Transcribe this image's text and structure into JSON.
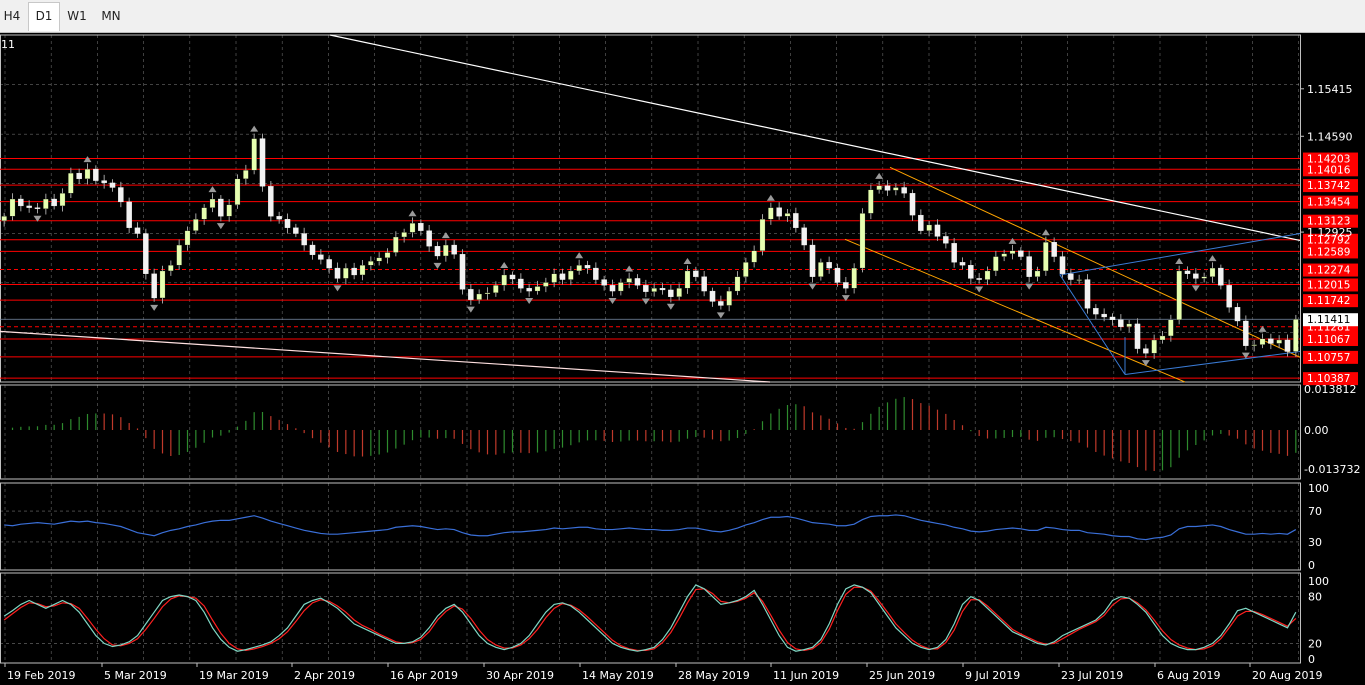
{
  "timeframe_tabs": [
    {
      "label": "H4",
      "active": false
    },
    {
      "label": "D1",
      "active": true
    },
    {
      "label": "W1",
      "active": false
    },
    {
      "label": "MN",
      "active": false
    }
  ],
  "chart_header": "11",
  "colors": {
    "background": "#000000",
    "grid": "#c0c0c0",
    "bull_candle": "#e6ffb0",
    "bear_candle": "#f2f2f2",
    "level_line": "#ff0000",
    "level_label_bg": "#ff0000",
    "trendline": "#ffffff",
    "channel": "#ffa500",
    "channel_blue": "#3a7bd5",
    "macd_up": "#2e8b2e",
    "macd_down": "#c0392b",
    "rsi": "#3a6fd8",
    "stoch_main": "#7fd7c4",
    "stoch_signal": "#ff2020"
  },
  "chart_data": {
    "type": "candlestick",
    "symbol_period": "D1",
    "price_range": [
      1.1032,
      1.1635
    ],
    "price_ticks": [
      "1.15415",
      "1.14590",
      "1.12925"
    ],
    "current_price": "1.11411",
    "levels": [
      "1.14203",
      "1.14016",
      "1.13742",
      "1.13454",
      "1.13123",
      "1.12792",
      "1.12589",
      "1.12274",
      "1.12015",
      "1.11742",
      "1.11281",
      "1.11067",
      "1.10757",
      "1.10387"
    ],
    "dashed_levels": [
      "1.12274",
      "1.11281"
    ],
    "x_labels": [
      "19 Feb 2019",
      "5 Mar 2019",
      "19 Mar 2019",
      "2 Apr 2019",
      "16 Apr 2019",
      "30 Apr 2019",
      "14 May 2019",
      "28 May 2019",
      "11 Jun 2019",
      "25 Jun 2019",
      "9 Jul 2019",
      "23 Jul 2019",
      "6 Aug 2019",
      "20 Aug 2019"
    ],
    "closes": [
      1.132,
      1.135,
      1.1338,
      1.1335,
      1.1333,
      1.135,
      1.1338,
      1.136,
      1.1395,
      1.1385,
      1.1402,
      1.1382,
      1.1378,
      1.137,
      1.1345,
      1.13,
      1.129,
      1.122,
      1.1178,
      1.1225,
      1.1235,
      1.127,
      1.1295,
      1.1315,
      1.1335,
      1.135,
      1.132,
      1.134,
      1.1385,
      1.14,
      1.1455,
      1.1372,
      1.132,
      1.1315,
      1.13,
      1.129,
      1.127,
      1.1253,
      1.1245,
      1.123,
      1.1212,
      1.123,
      1.1218,
      1.1235,
      1.1242,
      1.1248,
      1.1257,
      1.1284,
      1.1292,
      1.1308,
      1.1295,
      1.1268,
      1.1251,
      1.127,
      1.1254,
      1.1193,
      1.1175,
      1.1185,
      1.1187,
      1.12,
      1.1218,
      1.1211,
      1.1195,
      1.119,
      1.1198,
      1.1205,
      1.122,
      1.121,
      1.1225,
      1.1235,
      1.123,
      1.121,
      1.12,
      1.119,
      1.1205,
      1.1212,
      1.12,
      1.1189,
      1.1195,
      1.1192,
      1.118,
      1.1195,
      1.1225,
      1.1215,
      1.119,
      1.1172,
      1.1165,
      1.119,
      1.1215,
      1.124,
      1.126,
      1.1315,
      1.1335,
      1.132,
      1.1325,
      1.13,
      1.127,
      1.1215,
      1.124,
      1.123,
      1.1205,
      1.1195,
      1.123,
      1.1325,
      1.1366,
      1.1373,
      1.1365,
      1.137,
      1.136,
      1.1322,
      1.1295,
      1.1305,
      1.1285,
      1.1273,
      1.124,
      1.1235,
      1.1212,
      1.121,
      1.1225,
      1.125,
      1.1255,
      1.126,
      1.125,
      1.1215,
      1.1225,
      1.1275,
      1.125,
      1.122,
      1.121,
      1.121,
      1.116,
      1.115,
      1.1145,
      1.114,
      1.1128,
      1.1133,
      1.109,
      1.1082,
      1.1105,
      1.1112,
      1.114,
      1.1225,
      1.122,
      1.1212,
      1.1215,
      1.123,
      1.12,
      1.1162,
      1.1138,
      1.1095,
      1.1097,
      1.1107,
      1.1099,
      1.1105,
      1.1085,
      1.1141
    ],
    "macd_ticks": [
      "0.013812",
      "0.00",
      "-0.013732"
    ],
    "rsi_ticks": [
      "100",
      "70",
      "30",
      "0"
    ],
    "rsi_values": [
      52,
      51,
      53,
      54,
      55,
      54,
      53,
      55,
      57,
      56,
      57,
      55,
      54,
      52,
      50,
      46,
      42,
      40,
      38,
      42,
      45,
      47,
      50,
      52,
      55,
      57,
      58,
      58,
      60,
      62,
      64,
      61,
      57,
      54,
      51,
      48,
      45,
      43,
      41,
      40,
      40,
      41,
      42,
      43,
      44,
      45,
      46,
      49,
      50,
      51,
      50,
      48,
      46,
      47,
      46,
      42,
      39,
      38,
      38,
      40,
      42,
      43,
      43,
      44,
      45,
      46,
      48,
      47,
      48,
      49,
      49,
      47,
      46,
      46,
      47,
      48,
      47,
      46,
      46,
      45,
      45,
      46,
      48,
      48,
      46,
      44,
      43,
      45,
      48,
      52,
      55,
      59,
      62,
      62,
      63,
      61,
      58,
      55,
      54,
      53,
      51,
      51,
      53,
      59,
      63,
      64,
      64,
      65,
      64,
      61,
      58,
      56,
      54,
      52,
      49,
      47,
      44,
      43,
      44,
      46,
      47,
      48,
      47,
      45,
      45,
      49,
      48,
      46,
      45,
      45,
      42,
      41,
      40,
      38,
      37,
      37,
      34,
      33,
      35,
      36,
      39,
      47,
      50,
      50,
      51,
      52,
      50,
      46,
      43,
      40,
      40,
      41,
      40,
      41,
      40,
      46
    ],
    "stoch_ticks": [
      "100",
      "80",
      "20",
      "0"
    ],
    "stoch_main": [
      55,
      62,
      70,
      75,
      70,
      65,
      70,
      75,
      70,
      60,
      45,
      30,
      20,
      16,
      18,
      22,
      30,
      45,
      60,
      75,
      80,
      82,
      80,
      75,
      60,
      40,
      25,
      15,
      10,
      12,
      15,
      18,
      22,
      30,
      40,
      55,
      70,
      75,
      78,
      72,
      65,
      55,
      45,
      40,
      35,
      30,
      25,
      20,
      20,
      22,
      28,
      40,
      55,
      65,
      70,
      60,
      45,
      30,
      20,
      15,
      12,
      15,
      20,
      30,
      45,
      60,
      70,
      72,
      68,
      60,
      50,
      40,
      30,
      20,
      15,
      12,
      10,
      12,
      15,
      25,
      40,
      60,
      80,
      95,
      90,
      80,
      70,
      72,
      75,
      80,
      88,
      70,
      50,
      30,
      15,
      10,
      12,
      15,
      25,
      45,
      70,
      90,
      95,
      92,
      85,
      70,
      55,
      40,
      30,
      20,
      15,
      12,
      15,
      25,
      45,
      70,
      80,
      75,
      65,
      55,
      45,
      35,
      30,
      25,
      20,
      18,
      22,
      30,
      35,
      40,
      45,
      50,
      60,
      75,
      80,
      78,
      70,
      60,
      45,
      30,
      20,
      15,
      12,
      12,
      15,
      20,
      30,
      45,
      62,
      65,
      60,
      55,
      50,
      45,
      40,
      60
    ],
    "stoch_signal": [
      50,
      58,
      66,
      72,
      71,
      67,
      68,
      72,
      71,
      65,
      52,
      38,
      26,
      18,
      17,
      20,
      26,
      38,
      52,
      67,
      77,
      81,
      80,
      78,
      68,
      50,
      33,
      20,
      13,
      11,
      13,
      16,
      20,
      26,
      35,
      48,
      62,
      72,
      76,
      74,
      68,
      60,
      50,
      43,
      38,
      32,
      27,
      22,
      20,
      21,
      25,
      35,
      50,
      61,
      68,
      64,
      52,
      37,
      25,
      18,
      14,
      14,
      18,
      26,
      38,
      53,
      65,
      71,
      69,
      63,
      54,
      44,
      34,
      24,
      17,
      13,
      11,
      11,
      13,
      21,
      34,
      52,
      72,
      89,
      90,
      84,
      74,
      72,
      74,
      78,
      85,
      74,
      56,
      37,
      21,
      13,
      11,
      13,
      21,
      38,
      62,
      83,
      92,
      92,
      87,
      74,
      60,
      45,
      34,
      24,
      17,
      13,
      13,
      21,
      37,
      61,
      76,
      76,
      68,
      58,
      48,
      38,
      32,
      27,
      22,
      19,
      20,
      26,
      32,
      38,
      43,
      48,
      56,
      69,
      77,
      78,
      72,
      63,
      50,
      36,
      25,
      18,
      14,
      12,
      13,
      17,
      26,
      40,
      55,
      61,
      61,
      57,
      52,
      47,
      42,
      52
    ],
    "chart_header": "11"
  }
}
